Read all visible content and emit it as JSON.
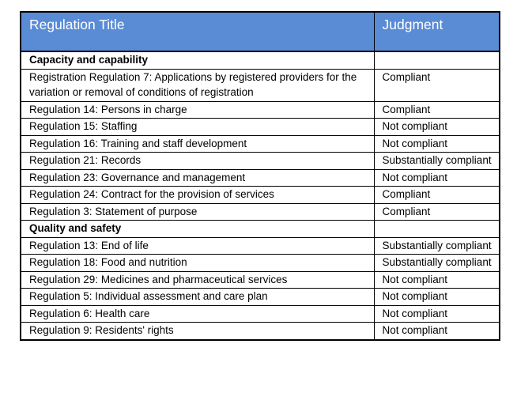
{
  "table": {
    "header": {
      "title_col": "Regulation Title",
      "judgment_col": "Judgment"
    },
    "colors": {
      "header_bg": "#5A8CD5",
      "header_text": "#ffffff",
      "border": "#000000",
      "body_text": "#000000"
    },
    "rows": [
      {
        "type": "section",
        "title": "Capacity and capability",
        "judgment": ""
      },
      {
        "type": "item",
        "title": "Registration Regulation 7: Applications by registered providers for the variation or removal of conditions of registration",
        "judgment": "Compliant"
      },
      {
        "type": "item",
        "title": "Regulation 14: Persons in charge",
        "judgment": "Compliant"
      },
      {
        "type": "item",
        "title": "Regulation 15: Staffing",
        "judgment": "Not compliant"
      },
      {
        "type": "item",
        "title": "Regulation 16: Training and staff development",
        "judgment": "Not compliant"
      },
      {
        "type": "item",
        "title": "Regulation 21: Records",
        "judgment": "Substantially compliant"
      },
      {
        "type": "item",
        "title": "Regulation 23: Governance and management",
        "judgment": "Not compliant"
      },
      {
        "type": "item",
        "title": "Regulation 24: Contract for the provision of services",
        "judgment": "Compliant"
      },
      {
        "type": "item",
        "title": "Regulation 3: Statement of purpose",
        "judgment": "Compliant"
      },
      {
        "type": "section",
        "title": "Quality and safety",
        "judgment": ""
      },
      {
        "type": "item",
        "title": "Regulation 13: End of life",
        "judgment": "Substantially compliant"
      },
      {
        "type": "item",
        "title": "Regulation 18: Food and nutrition",
        "judgment": "Substantially compliant"
      },
      {
        "type": "item",
        "title": "Regulation 29: Medicines and pharmaceutical services",
        "judgment": "Not compliant"
      },
      {
        "type": "item",
        "title": "Regulation 5: Individual assessment and care plan",
        "judgment": "Not compliant"
      },
      {
        "type": "item",
        "title": "Regulation 6: Health care",
        "judgment": "Not compliant"
      },
      {
        "type": "item",
        "title": "Regulation 9: Residents' rights",
        "judgment": "Not compliant"
      }
    ]
  }
}
